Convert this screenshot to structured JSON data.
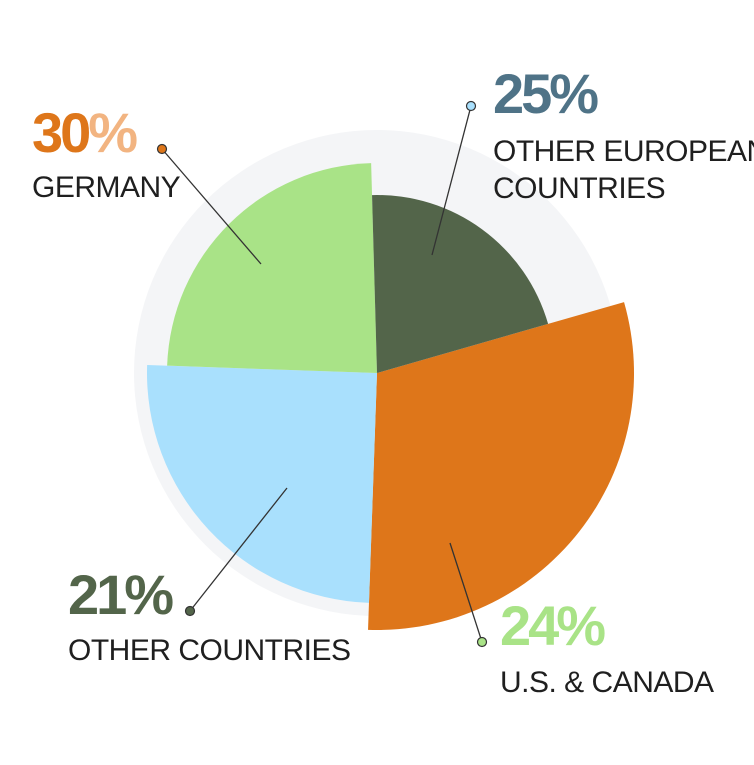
{
  "chart_data": {
    "type": "pie",
    "style": "variable-radius",
    "categories": [
      "Germany",
      "Other European Countries",
      "U.S. & Canada",
      "Other Countries"
    ],
    "slices": [
      {
        "label_lines": [
          "GERMANY"
        ],
        "value": 30,
        "value_label": "30%",
        "color": "#DE761A",
        "value_color": "#DE761A",
        "value_color_alt": "#F2B481"
      },
      {
        "label_lines": [
          "OTHER EUROPEAN",
          "COUNTRIES"
        ],
        "value": 25,
        "value_label": "25%",
        "color": "#A9E0FD",
        "value_color": "#4F7387"
      },
      {
        "label_lines": [
          "U.S. & CANADA"
        ],
        "value": 24,
        "value_label": "24%",
        "color": "#A9E387",
        "value_color": "#A9E387"
      },
      {
        "label_lines": [
          "OTHER COUNTRIES"
        ],
        "value": 21,
        "value_label": "21%",
        "color": "#53654A",
        "value_color": "#53654A"
      }
    ],
    "background_ring_color": "#F4F5F7",
    "leader_line_color": "#333333",
    "legend": "none",
    "grid": false
  }
}
